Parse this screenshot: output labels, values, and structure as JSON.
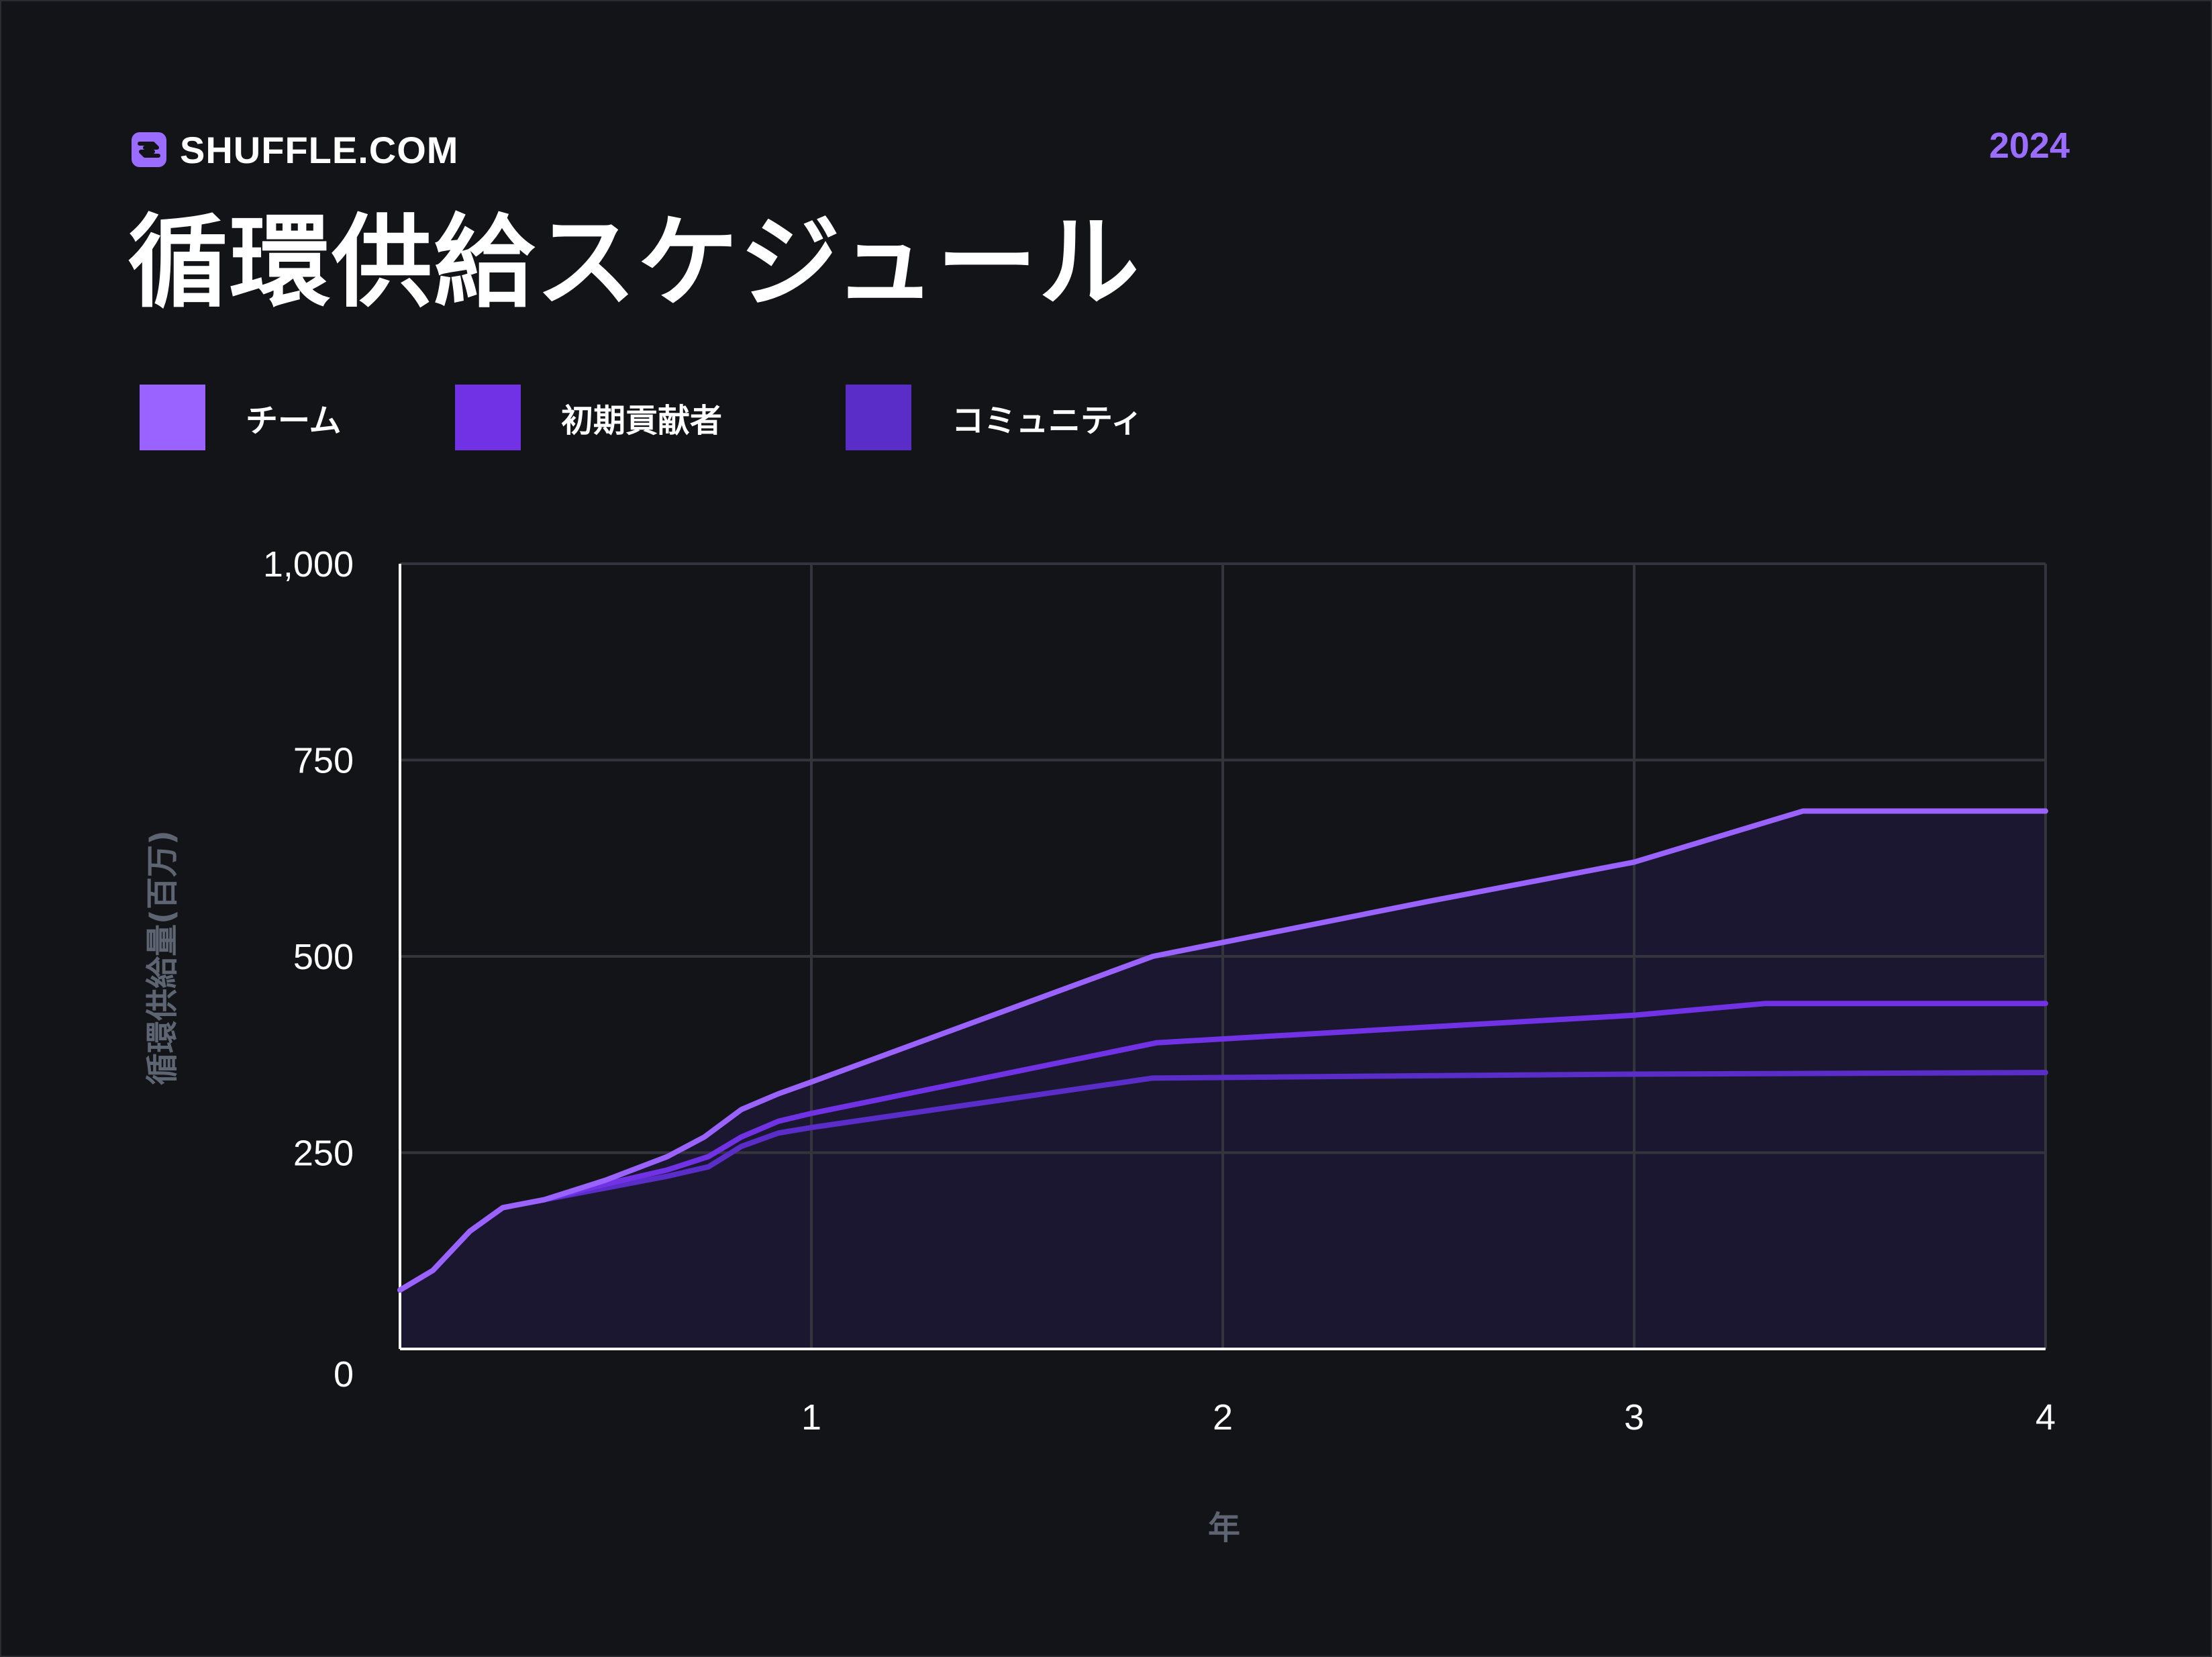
{
  "brand": {
    "name": "SHUFFLE.COM",
    "year": "2024"
  },
  "page": {
    "title": "循環供給スケジュール"
  },
  "colors": {
    "background": "#131417",
    "accent": "#9a6cff",
    "grid": "#34353c",
    "axis_label": "#5d6472",
    "area_fill": "#1f1838"
  },
  "chart_data": {
    "type": "line",
    "title": "循環供給スケジュール",
    "xlabel": "年",
    "ylabel": "循環供給量(百万)",
    "xlim": [
      0,
      4
    ],
    "ylim": [
      0,
      1000
    ],
    "x_ticks": [
      "1",
      "2",
      "3",
      "4"
    ],
    "y_ticks": [
      "0",
      "250",
      "500",
      "750",
      "1,000"
    ],
    "grid": true,
    "legend_position": "top-left",
    "series": [
      {
        "name": "チーム",
        "color": "#9a62ff",
        "points": [
          [
            0,
            75
          ],
          [
            0.08,
            100
          ],
          [
            0.17,
            150
          ],
          [
            0.25,
            180
          ],
          [
            0.35,
            190
          ],
          [
            0.5,
            215
          ],
          [
            0.65,
            245
          ],
          [
            0.74,
            270
          ],
          [
            0.83,
            305
          ],
          [
            0.92,
            325
          ],
          [
            1.0,
            340
          ],
          [
            1.83,
            500
          ],
          [
            2.5,
            570
          ],
          [
            3.0,
            620
          ],
          [
            3.41,
            685
          ],
          [
            4.0,
            685
          ]
        ]
      },
      {
        "name": "初期貢献者",
        "color": "#7132e6",
        "points": [
          [
            0,
            75
          ],
          [
            0.08,
            100
          ],
          [
            0.17,
            150
          ],
          [
            0.25,
            180
          ],
          [
            0.35,
            190
          ],
          [
            0.5,
            210
          ],
          [
            0.65,
            228
          ],
          [
            0.75,
            245
          ],
          [
            0.83,
            270
          ],
          [
            0.92,
            290
          ],
          [
            1.0,
            300
          ],
          [
            1.84,
            390
          ],
          [
            2.5,
            410
          ],
          [
            3.0,
            425
          ],
          [
            3.32,
            440
          ],
          [
            4.0,
            440
          ]
        ]
      },
      {
        "name": "コミュニティ",
        "color": "#5a2dc8",
        "points": [
          [
            0,
            75
          ],
          [
            0.08,
            100
          ],
          [
            0.17,
            150
          ],
          [
            0.25,
            180
          ],
          [
            0.35,
            190
          ],
          [
            0.5,
            205
          ],
          [
            0.65,
            220
          ],
          [
            0.75,
            232
          ],
          [
            0.83,
            258
          ],
          [
            0.92,
            275
          ],
          [
            1.0,
            282
          ],
          [
            1.83,
            345
          ],
          [
            2.5,
            348
          ],
          [
            3.0,
            350
          ],
          [
            4.0,
            352
          ]
        ]
      }
    ]
  }
}
